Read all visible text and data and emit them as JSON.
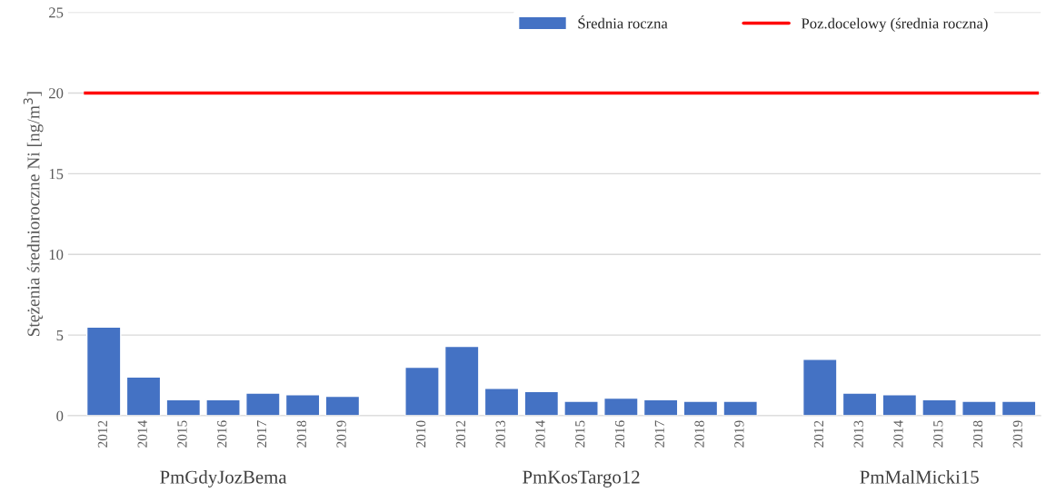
{
  "chart_data": {
    "type": "bar",
    "ylabel": "Stężenia średnioroczne Ni [ng/m$^{3}$]",
    "categories": [
      "2012",
      "2014",
      "2015",
      "2016",
      "2017",
      "2018",
      "2019",
      null,
      "2010",
      "2012",
      "2013",
      "2014",
      "2015",
      "2016",
      "2017",
      "2018",
      "2019",
      null,
      "2012",
      "2013",
      "2014",
      "2015",
      "2018",
      "2019"
    ],
    "series": [
      {
        "name": "Średnia roczna",
        "color": "#4472c4",
        "values": [
          5.5,
          2.4,
          1.0,
          1.0,
          1.4,
          1.3,
          1.2,
          null,
          3.0,
          4.3,
          1.7,
          1.5,
          0.9,
          1.1,
          1.0,
          0.9,
          0.9,
          null,
          3.5,
          1.4,
          1.3,
          1.0,
          0.9,
          0.9
        ]
      }
    ],
    "ref_lines": [
      {
        "axis": "y",
        "value": 20,
        "label": "Poz.docelowy (średnia roczna)",
        "color": "#ff0000",
        "line_style": "solid"
      }
    ],
    "annotations": [
      "PmGdyJozBema",
      "PmKosTargo12",
      "PmMalMicki15"
    ],
    "ylim": [
      0,
      25
    ],
    "yticks": [
      0,
      5,
      10,
      15,
      20,
      25
    ],
    "grid": "y",
    "legend": "top right"
  }
}
